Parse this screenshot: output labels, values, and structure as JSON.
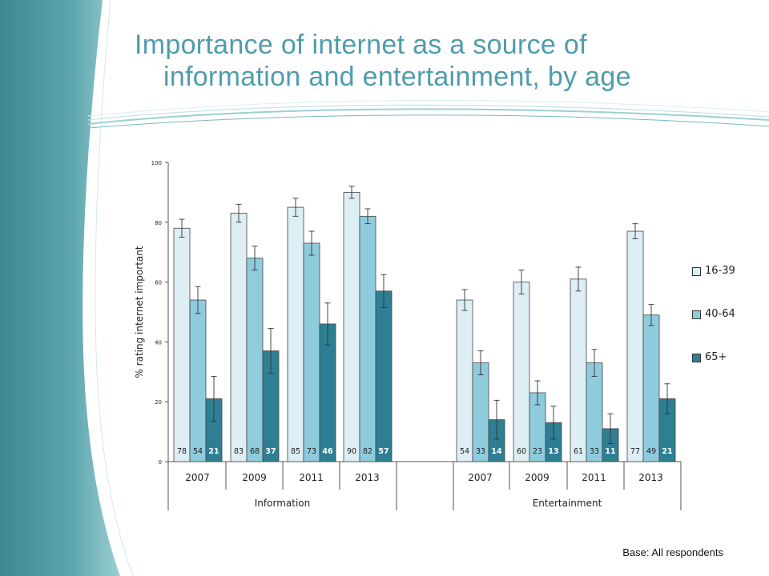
{
  "slide": {
    "title_line1": "Importance of internet as a source of",
    "title_line2": "information and entertainment, by age",
    "base_note": "Base: All respondents"
  },
  "colors": {
    "title": "#4f9cad",
    "series": [
      "#ddeef4",
      "#8ecbdc",
      "#2e7f94"
    ],
    "sidebar": "#3c8b97"
  },
  "chart_data": {
    "type": "bar",
    "ylabel": "% rating internet important",
    "ylim": [
      0,
      100
    ],
    "yticks": [
      0,
      20,
      40,
      60,
      80,
      100
    ],
    "groups": [
      {
        "label": "Information",
        "years": [
          "2007",
          "2009",
          "2011",
          "2013"
        ]
      },
      {
        "label": "Entertainment",
        "years": [
          "2007",
          "2009",
          "2011",
          "2013"
        ]
      }
    ],
    "series": [
      {
        "name": "16-39",
        "values": [
          78,
          83,
          85,
          90,
          54,
          60,
          61,
          77
        ],
        "err": [
          3,
          3,
          3,
          2,
          3.5,
          4,
          4,
          2.5
        ]
      },
      {
        "name": "40-64",
        "values": [
          54,
          68,
          73,
          82,
          33,
          23,
          33,
          49
        ],
        "err": [
          4.5,
          4,
          4,
          2.5,
          4,
          4,
          4.5,
          3.5
        ]
      },
      {
        "name": "65+",
        "values": [
          21,
          37,
          46,
          57,
          14,
          13,
          11,
          21
        ],
        "err": [
          7.5,
          7.5,
          7,
          5.5,
          6.5,
          5.5,
          5,
          5
        ]
      }
    ],
    "data_labels": [
      [
        "78",
        "83",
        "85",
        "90",
        "54",
        "60",
        "61",
        "77"
      ],
      [
        "54",
        "68",
        "73",
        "82",
        "33",
        "23",
        "33",
        "49"
      ],
      [
        "21",
        "37",
        "46",
        "57",
        "14",
        "13",
        "11",
        "21"
      ]
    ],
    "legend_position": "right",
    "grid": false
  }
}
